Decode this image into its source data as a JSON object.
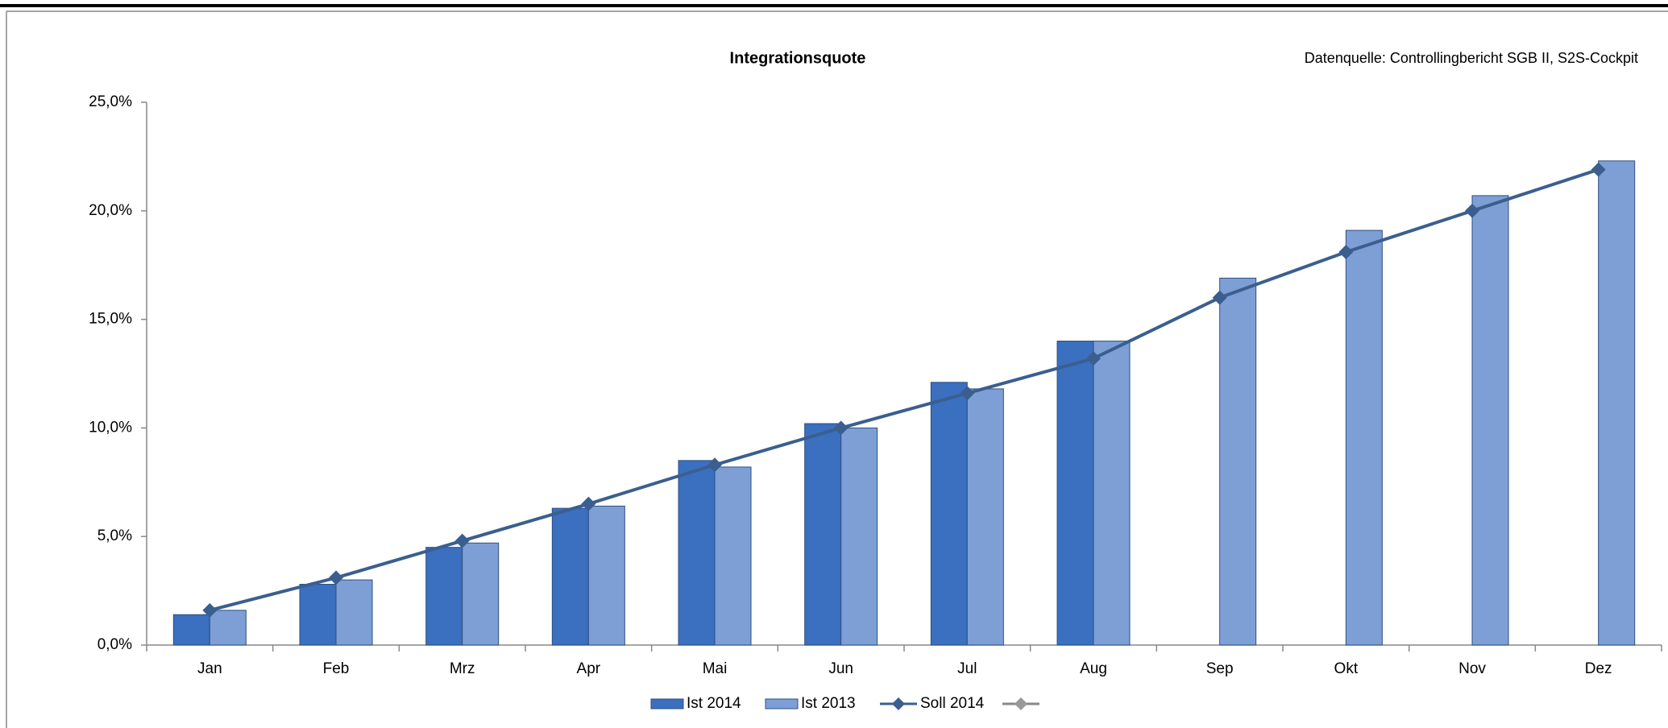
{
  "chart_data": {
    "type": "bar",
    "title": "Integrationsquote",
    "source": "Datenquelle: Controllingbericht SGB II, S2S-Cockpit",
    "categories": [
      "Jan",
      "Feb",
      "Mrz",
      "Apr",
      "Mai",
      "Jun",
      "Jul",
      "Aug",
      "Sep",
      "Okt",
      "Nov",
      "Dez"
    ],
    "series": [
      {
        "name": "Ist 2014",
        "type": "bar",
        "color": "#3b6fbf",
        "values": [
          1.4,
          2.8,
          4.5,
          6.3,
          8.5,
          10.2,
          12.1,
          14.0,
          null,
          null,
          null,
          null
        ]
      },
      {
        "name": "Ist 2013",
        "type": "bar",
        "color": "#7d9fd6",
        "values": [
          1.6,
          3.0,
          4.7,
          6.4,
          8.2,
          10.0,
          11.8,
          14.0,
          16.9,
          19.1,
          20.7,
          22.3
        ]
      },
      {
        "name": "Soll 2014",
        "type": "line",
        "color": "#3a5f8f",
        "values": [
          1.6,
          3.1,
          4.8,
          6.5,
          8.3,
          10.0,
          11.6,
          13.2,
          16.0,
          18.1,
          20.0,
          21.9
        ]
      }
    ],
    "ylim": [
      0,
      25
    ],
    "yticks": [
      {
        "value": 0,
        "label": "0,0%"
      },
      {
        "value": 5,
        "label": "5,0%"
      },
      {
        "value": 10,
        "label": "10,0%"
      },
      {
        "value": 15,
        "label": "15,0%"
      },
      {
        "value": 20,
        "label": "20,0%"
      },
      {
        "value": 25,
        "label": "25,0%"
      }
    ],
    "legend": "bottom"
  }
}
